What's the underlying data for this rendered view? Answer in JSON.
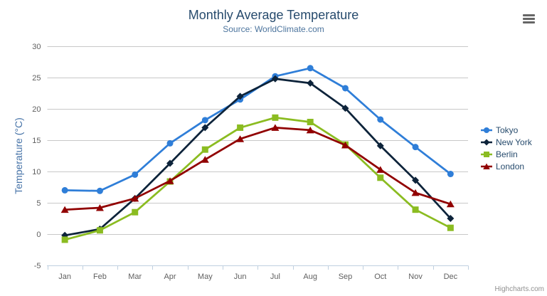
{
  "credit": {
    "label": "Highcharts.com"
  },
  "menu": {
    "icon": "hamburger-icon"
  },
  "chart_data": {
    "type": "line",
    "title": "Monthly Average Temperature",
    "subtitle": "Source: WorldClimate.com",
    "categories": [
      "Jan",
      "Feb",
      "Mar",
      "Apr",
      "May",
      "Jun",
      "Jul",
      "Aug",
      "Sep",
      "Oct",
      "Nov",
      "Dec"
    ],
    "xlabel": "",
    "ylabel": "Temperature (°C)",
    "ylim": [
      -5,
      30
    ],
    "yticks": [
      -5,
      0,
      5,
      10,
      15,
      20,
      25,
      30
    ],
    "grid": true,
    "legend_position": "right",
    "series": [
      {
        "name": "Tokyo",
        "color": "#2f7ed8",
        "marker": "circle",
        "values": [
          7.0,
          6.9,
          9.5,
          14.5,
          18.2,
          21.5,
          25.2,
          26.5,
          23.3,
          18.3,
          13.9,
          9.6
        ]
      },
      {
        "name": "New York",
        "color": "#0d233a",
        "marker": "diamond",
        "values": [
          -0.2,
          0.8,
          5.7,
          11.3,
          17.0,
          22.0,
          24.8,
          24.1,
          20.1,
          14.1,
          8.6,
          2.5
        ]
      },
      {
        "name": "Berlin",
        "color": "#8bbc21",
        "marker": "square",
        "values": [
          -0.9,
          0.6,
          3.5,
          8.4,
          13.5,
          17.0,
          18.6,
          17.9,
          14.3,
          9.0,
          3.9,
          1.0
        ]
      },
      {
        "name": "London",
        "color": "#910000",
        "marker": "triangle",
        "values": [
          3.9,
          4.2,
          5.7,
          8.5,
          11.9,
          15.2,
          17.0,
          16.6,
          14.2,
          10.3,
          6.6,
          4.8
        ]
      }
    ],
    "style": {
      "grid_color": "#c8c8c8",
      "axis_line_color": "#c0d0e0",
      "axis_label_color": "#606060",
      "title_color": "#274b6d",
      "subtitle_color": "#4d759e",
      "yaxis_title_color": "#4572a7",
      "legend_text_color": "#274b6d",
      "credit_color": "#909090",
      "menu_icon_color": "#666666",
      "background": "#ffffff"
    }
  }
}
